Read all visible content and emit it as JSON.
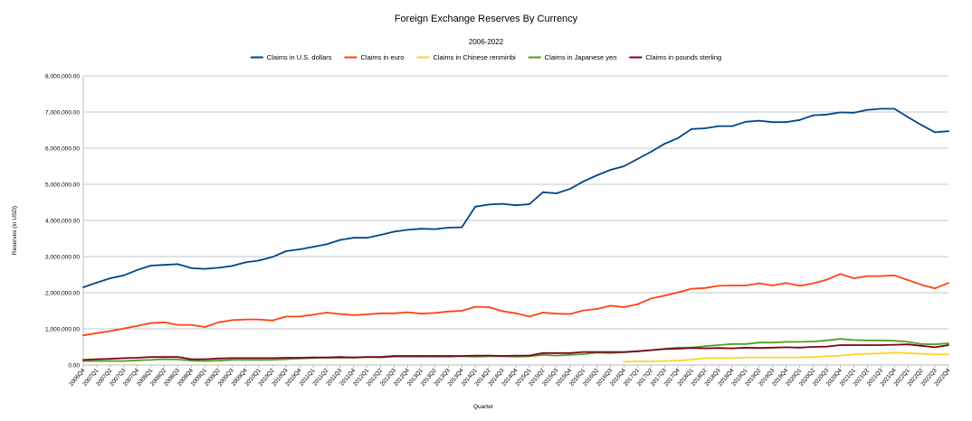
{
  "chart_data": {
    "type": "line",
    "title": "Foreign Exchange Reserves By Currency",
    "subtitle": "2006-2022",
    "xlabel": "Quarter",
    "ylabel": "Reserves (in USD)",
    "ylim": [
      0,
      8000000
    ],
    "yticks": [
      "0.00",
      "1,000,000.00",
      "2,000,000.00",
      "3,000,000.00",
      "4,000,000.00",
      "5,000,000.00",
      "6,000,000.00",
      "7,000,000.00",
      "8,000,000.00"
    ],
    "grid": "horizontal",
    "legend": "top",
    "categories": [
      "2006Q4",
      "2007Q1",
      "2007Q2",
      "2007Q3",
      "2007Q4",
      "2008Q1",
      "2008Q2",
      "2008Q3",
      "2008Q4",
      "2009Q1",
      "2009Q2",
      "2009Q3",
      "2009Q4",
      "2010Q1",
      "2010Q2",
      "2010Q3",
      "2010Q4",
      "2011Q1",
      "2011Q2",
      "2011Q3",
      "2011Q4",
      "2012Q1",
      "2012Q2",
      "2012Q3",
      "2012Q4",
      "2013Q1",
      "2013Q2",
      "2013Q3",
      "2013Q4",
      "2014Q1",
      "2014Q2",
      "2014Q3",
      "2014Q4",
      "2015Q1",
      "2015Q2",
      "2015Q3",
      "2015Q4",
      "2016Q1",
      "2016Q2",
      "2016Q3",
      "2016Q4",
      "2017Q1",
      "2017Q2",
      "2017Q3",
      "2017Q4",
      "2018Q1",
      "2018Q2",
      "2018Q3",
      "2018Q4",
      "2019Q1",
      "2019Q2",
      "2019Q3",
      "2019Q4",
      "2020Q1",
      "2020Q2",
      "2020Q3",
      "2020Q4",
      "2021Q1",
      "2021Q2",
      "2021Q3",
      "2021Q4",
      "2022Q1",
      "2022Q2",
      "2022Q3",
      "2022Q4"
    ],
    "series": [
      {
        "name": "Claims in U.S. dollars",
        "color": "#004586",
        "values": [
          2150000,
          2280000,
          2400000,
          2480000,
          2630000,
          2750000,
          2770000,
          2790000,
          2680000,
          2660000,
          2690000,
          2740000,
          2840000,
          2890000,
          2990000,
          3150000,
          3200000,
          3270000,
          3340000,
          3460000,
          3520000,
          3520000,
          3600000,
          3690000,
          3740000,
          3770000,
          3760000,
          3800000,
          3810000,
          4380000,
          4440000,
          4460000,
          4420000,
          4450000,
          4780000,
          4750000,
          4870000,
          5080000,
          5250000,
          5400000,
          5500000,
          5700000,
          5900000,
          6120000,
          6280000,
          6530000,
          6550000,
          6610000,
          6610000,
          6730000,
          6760000,
          6720000,
          6720000,
          6780000,
          6910000,
          6930000,
          6990000,
          6980000,
          7060000,
          7090000,
          7090000,
          6860000,
          6640000,
          6440000,
          6470000
        ]
      },
      {
        "name": "Claims in euro",
        "color": "#ff420e",
        "values": [
          820000,
          880000,
          940000,
          1010000,
          1080000,
          1160000,
          1180000,
          1110000,
          1110000,
          1050000,
          1180000,
          1240000,
          1260000,
          1260000,
          1230000,
          1340000,
          1340000,
          1390000,
          1450000,
          1410000,
          1380000,
          1400000,
          1430000,
          1430000,
          1460000,
          1420000,
          1440000,
          1480000,
          1500000,
          1610000,
          1600000,
          1490000,
          1430000,
          1340000,
          1450000,
          1420000,
          1410000,
          1510000,
          1550000,
          1640000,
          1600000,
          1680000,
          1840000,
          1920000,
          2010000,
          2110000,
          2130000,
          2190000,
          2200000,
          2200000,
          2260000,
          2200000,
          2270000,
          2190000,
          2260000,
          2360000,
          2520000,
          2400000,
          2460000,
          2460000,
          2480000,
          2350000,
          2220000,
          2120000,
          2270000
        ]
      },
      {
        "name": "Claims in Chinese renminbi",
        "color": "#ffd320",
        "values": [
          null,
          null,
          null,
          null,
          null,
          null,
          null,
          null,
          null,
          null,
          null,
          null,
          null,
          null,
          null,
          null,
          null,
          null,
          null,
          null,
          null,
          null,
          null,
          null,
          null,
          null,
          null,
          null,
          null,
          null,
          null,
          null,
          null,
          null,
          null,
          null,
          null,
          null,
          null,
          null,
          90000,
          100000,
          100000,
          110000,
          120000,
          150000,
          190000,
          190000,
          190000,
          210000,
          210000,
          210000,
          210000,
          210000,
          220000,
          240000,
          260000,
          290000,
          310000,
          320000,
          340000,
          330000,
          310000,
          290000,
          290000
        ]
      },
      {
        "name": "Claims in Japanese yen",
        "color": "#579d1c",
        "values": [
          110000,
          110000,
          110000,
          110000,
          130000,
          140000,
          160000,
          150000,
          120000,
          110000,
          120000,
          140000,
          140000,
          140000,
          140000,
          160000,
          180000,
          190000,
          200000,
          200000,
          200000,
          220000,
          210000,
          230000,
          230000,
          230000,
          230000,
          230000,
          240000,
          230000,
          240000,
          240000,
          230000,
          240000,
          280000,
          260000,
          280000,
          300000,
          340000,
          330000,
          350000,
          380000,
          410000,
          450000,
          480000,
          480000,
          520000,
          550000,
          580000,
          580000,
          620000,
          620000,
          640000,
          640000,
          650000,
          680000,
          720000,
          690000,
          680000,
          680000,
          670000,
          640000,
          580000,
          570000,
          600000
        ]
      },
      {
        "name": "Claims in pounds sterling",
        "color": "#7e0021",
        "values": [
          140000,
          160000,
          170000,
          190000,
          200000,
          220000,
          220000,
          220000,
          160000,
          160000,
          180000,
          190000,
          190000,
          190000,
          190000,
          200000,
          200000,
          210000,
          210000,
          220000,
          210000,
          220000,
          220000,
          250000,
          250000,
          250000,
          250000,
          250000,
          250000,
          260000,
          260000,
          250000,
          260000,
          260000,
          330000,
          330000,
          330000,
          360000,
          360000,
          360000,
          360000,
          380000,
          410000,
          440000,
          450000,
          470000,
          460000,
          470000,
          460000,
          480000,
          470000,
          480000,
          490000,
          480000,
          500000,
          510000,
          550000,
          550000,
          550000,
          550000,
          560000,
          570000,
          530000,
          490000,
          550000
        ]
      }
    ]
  }
}
